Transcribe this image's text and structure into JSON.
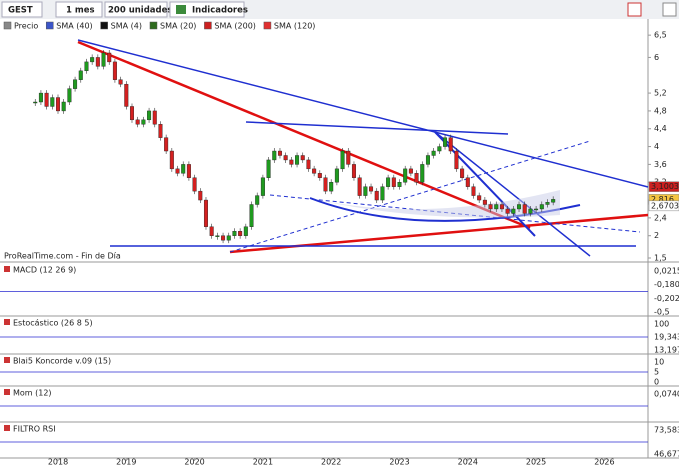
{
  "toolbar": {
    "symbol": "GEST",
    "period": "1 mes",
    "units": "200 unidades",
    "indicators": "Indicadores"
  },
  "legend": [
    {
      "name": "Precio",
      "color": "#888888"
    },
    {
      "name": "SMA (40)",
      "color": "#3b55c8"
    },
    {
      "name": "SMA (4)",
      "color": "#111111"
    },
    {
      "name": "SMA (20)",
      "color": "#2e6b1e"
    },
    {
      "name": "SMA (200)",
      "color": "#cc2020"
    },
    {
      "name": "SMA (120)",
      "color": "#e03030"
    }
  ],
  "source": "ProRealTime.com - Fin de Día",
  "chart_data": {
    "type": "candlestick",
    "values": [
      5.0,
      5.2,
      4.9,
      5.1,
      4.8,
      5.0,
      5.3,
      5.5,
      5.7,
      5.9,
      6.0,
      5.8,
      6.1,
      5.9,
      5.5,
      5.4,
      4.9,
      4.6,
      4.5,
      4.6,
      4.8,
      4.5,
      4.2,
      3.9,
      3.5,
      3.4,
      3.6,
      3.3,
      3.0,
      2.8,
      2.2,
      2.0,
      2.0,
      1.9,
      2.0,
      2.1,
      2.0,
      2.2,
      2.7,
      2.9,
      3.3,
      3.7,
      3.9,
      3.8,
      3.7,
      3.6,
      3.8,
      3.7,
      3.5,
      3.4,
      3.3,
      3.0,
      3.2,
      3.5,
      3.9,
      3.6,
      3.3,
      2.9,
      3.1,
      3.0,
      2.8,
      3.1,
      3.3,
      3.1,
      3.2,
      3.5,
      3.4,
      3.2,
      3.6,
      3.8,
      3.9,
      4.0,
      4.2,
      3.9,
      3.5,
      3.3,
      3.1,
      2.9,
      2.8,
      2.7,
      2.6,
      2.7,
      2.6,
      2.5,
      2.6,
      2.7,
      2.5,
      2.6,
      2.6,
      2.7,
      2.75,
      2.816
    ],
    "up_color": "#1f9a1f",
    "down_color": "#d42020",
    "ylim": [
      1.41,
      6.84
    ],
    "yticks": [
      {
        "value": 6.5,
        "label": "6,5"
      },
      6,
      {
        "value": 5.2,
        "label": "5,2"
      },
      {
        "value": 4.8,
        "label": "4,8"
      },
      {
        "value": 4.4,
        "label": "4,4"
      },
      4,
      {
        "value": 3.6,
        "label": "3,6"
      },
      {
        "value": 3.2,
        "label": "3,2"
      },
      {
        "value": 2.8,
        "label": "2,8"
      },
      {
        "value": 2.4,
        "label": "2,4"
      },
      2,
      {
        "value": 1.5,
        "label": "1,5"
      }
    ],
    "last_labels": [
      {
        "value": 3.1003,
        "label": "3,1003",
        "color": "#cc2020"
      },
      {
        "value": 2.816,
        "label": "2,816",
        "color": "#f5c542"
      },
      {
        "value": 2.6703,
        "label": "2,6703",
        "color": "#ffffff"
      }
    ],
    "xticks": [
      2018,
      2019,
      2020,
      2021,
      2022,
      2023,
      2024,
      2025,
      2026
    ]
  },
  "panels": [
    {
      "title": "MACD (12 26 9)",
      "labels": [
        "0,0215",
        "-0,1805",
        "-0,2024",
        "-0,5"
      ]
    },
    {
      "title": "Estocástico (26 8 5)",
      "labels": [
        "100",
        "19,343",
        "13,197"
      ]
    },
    {
      "title": "Blai5 Koncorde v.09 (15)",
      "labels": [
        "10",
        "5",
        "0"
      ]
    },
    {
      "title": "Mom (12)",
      "labels": [
        "0,0740"
      ]
    },
    {
      "title": "FILTRO RSI",
      "labels": [
        "73,583",
        "46,677"
      ]
    }
  ]
}
